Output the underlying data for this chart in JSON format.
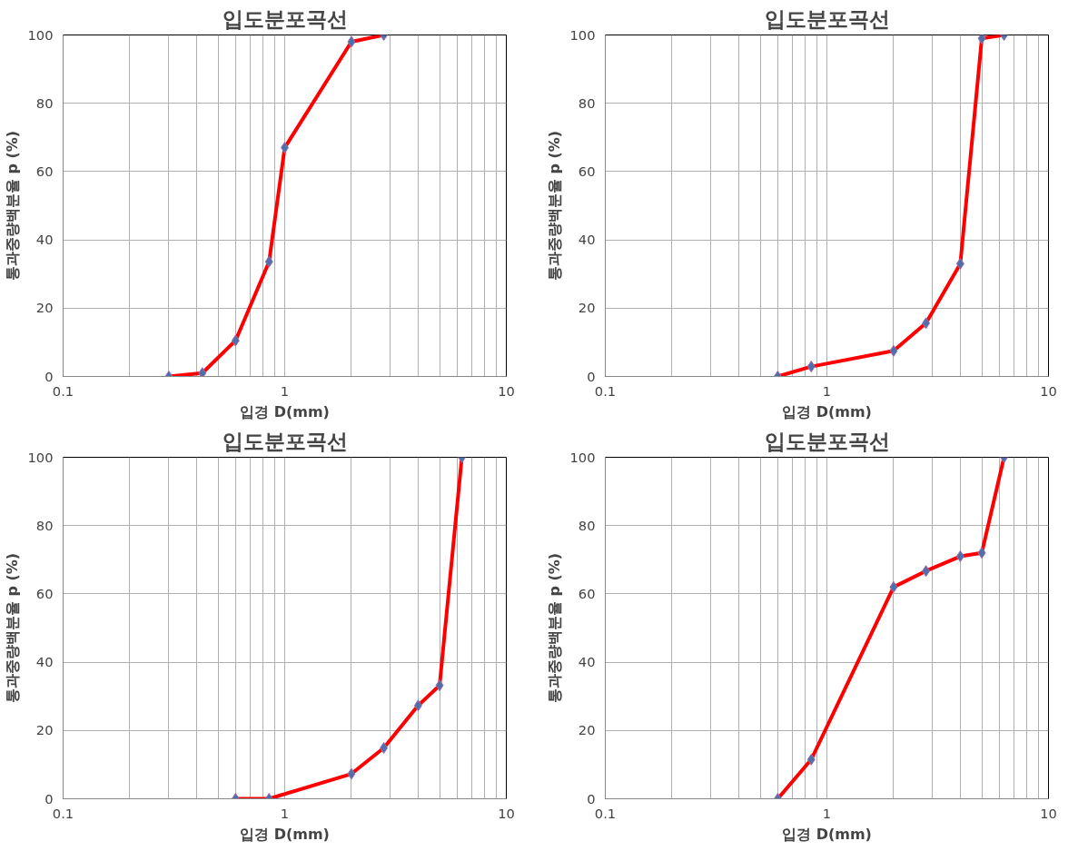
{
  "chart_data": [
    {
      "type": "line",
      "title": "입도분포곡선",
      "xlabel": "입경 D(mm)",
      "ylabel": "통과중량백분율 p (%)",
      "log": "x",
      "grid": true,
      "marker": "diamond",
      "line_style": "solid",
      "xlim": [
        0.1,
        10
      ],
      "ylim": [
        0,
        100
      ],
      "xticks": [
        0.1,
        {
          "value": 0.2,
          "label": null
        },
        {
          "value": 0.3,
          "label": null
        },
        {
          "value": 0.4,
          "label": null
        },
        {
          "value": 0.5,
          "label": null
        },
        {
          "value": 0.6,
          "label": null
        },
        {
          "value": 0.7,
          "label": null
        },
        {
          "value": 0.8,
          "label": null
        },
        {
          "value": 0.9,
          "label": null
        },
        1,
        {
          "value": 2,
          "label": null
        },
        {
          "value": 3,
          "label": null
        },
        {
          "value": 4,
          "label": null
        },
        {
          "value": 5,
          "label": null
        },
        {
          "value": 6,
          "label": null
        },
        {
          "value": 7,
          "label": null
        },
        {
          "value": 8,
          "label": null
        },
        {
          "value": 9,
          "label": null
        },
        10
      ],
      "yticks": [
        0,
        20,
        40,
        60,
        80,
        100
      ],
      "series": [
        {
          "color": "#ff0000",
          "x": [
            0.3,
            0.425,
            0.6,
            0.85,
            1,
            2,
            2.8
          ],
          "values": [
            0,
            1,
            10.5,
            33.6,
            67,
            98,
            100
          ]
        }
      ]
    },
    {
      "type": "line",
      "title": "입도분포곡선",
      "xlabel": "입경 D(mm)",
      "ylabel": "통과중량백분율 p (%)",
      "log": "x",
      "grid": true,
      "marker": "diamond",
      "line_style": "solid",
      "xlim": [
        0.1,
        10
      ],
      "ylim": [
        0,
        100
      ],
      "xticks": [
        0.1,
        {
          "value": 0.2,
          "label": null
        },
        {
          "value": 0.3,
          "label": null
        },
        {
          "value": 0.4,
          "label": null
        },
        {
          "value": 0.5,
          "label": null
        },
        {
          "value": 0.6,
          "label": null
        },
        {
          "value": 0.7,
          "label": null
        },
        {
          "value": 0.8,
          "label": null
        },
        {
          "value": 0.9,
          "label": null
        },
        1,
        {
          "value": 2,
          "label": null
        },
        {
          "value": 3,
          "label": null
        },
        {
          "value": 4,
          "label": null
        },
        {
          "value": 5,
          "label": null
        },
        {
          "value": 6,
          "label": null
        },
        {
          "value": 7,
          "label": null
        },
        {
          "value": 8,
          "label": null
        },
        {
          "value": 9,
          "label": null
        },
        10
      ],
      "yticks": [
        0,
        20,
        40,
        60,
        80,
        100
      ],
      "series": [
        {
          "color": "#ff0000",
          "x": [
            0.6,
            0.85,
            2,
            2.8,
            4,
            5,
            6.3
          ],
          "values": [
            0,
            2.9,
            7.5,
            15.6,
            33,
            99,
            100
          ]
        }
      ]
    },
    {
      "type": "line",
      "title": "입도분포곡선",
      "xlabel": "입경 D(mm)",
      "ylabel": "통과중량백분율 p (%)",
      "log": "x",
      "grid": true,
      "marker": "diamond",
      "line_style": "solid",
      "xlim": [
        0.1,
        10
      ],
      "ylim": [
        0,
        100
      ],
      "xticks": [
        0.1,
        {
          "value": 0.2,
          "label": null
        },
        {
          "value": 0.3,
          "label": null
        },
        {
          "value": 0.4,
          "label": null
        },
        {
          "value": 0.5,
          "label": null
        },
        {
          "value": 0.6,
          "label": null
        },
        {
          "value": 0.7,
          "label": null
        },
        {
          "value": 0.8,
          "label": null
        },
        {
          "value": 0.9,
          "label": null
        },
        1,
        {
          "value": 2,
          "label": null
        },
        {
          "value": 3,
          "label": null
        },
        {
          "value": 4,
          "label": null
        },
        {
          "value": 5,
          "label": null
        },
        {
          "value": 6,
          "label": null
        },
        {
          "value": 7,
          "label": null
        },
        {
          "value": 8,
          "label": null
        },
        {
          "value": 9,
          "label": null
        },
        10
      ],
      "yticks": [
        0,
        20,
        40,
        60,
        80,
        100
      ],
      "series": [
        {
          "color": "#ff0000",
          "x": [
            0.6,
            0.85,
            2,
            2.8,
            4,
            5,
            6.3
          ],
          "values": [
            0,
            0,
            7.3,
            14.9,
            27.3,
            33.2,
            100
          ]
        }
      ]
    },
    {
      "type": "line",
      "title": "입도분포곡선",
      "xlabel": "입경 D(mm)",
      "ylabel": "통과중량백분율 p (%)",
      "log": "x",
      "grid": true,
      "marker": "diamond",
      "line_style": "solid",
      "xlim": [
        0.1,
        10
      ],
      "ylim": [
        0,
        100
      ],
      "xticks": [
        0.1,
        {
          "value": 0.2,
          "label": null
        },
        {
          "value": 0.3,
          "label": null
        },
        {
          "value": 0.4,
          "label": null
        },
        {
          "value": 0.5,
          "label": null
        },
        {
          "value": 0.6,
          "label": null
        },
        {
          "value": 0.7,
          "label": null
        },
        {
          "value": 0.8,
          "label": null
        },
        {
          "value": 0.9,
          "label": null
        },
        1,
        {
          "value": 2,
          "label": null
        },
        {
          "value": 3,
          "label": null
        },
        {
          "value": 4,
          "label": null
        },
        {
          "value": 5,
          "label": null
        },
        {
          "value": 6,
          "label": null
        },
        {
          "value": 7,
          "label": null
        },
        {
          "value": 8,
          "label": null
        },
        {
          "value": 9,
          "label": null
        },
        10
      ],
      "yticks": [
        0,
        20,
        40,
        60,
        80,
        100
      ],
      "series": [
        {
          "color": "#ff0000",
          "x": [
            0.6,
            0.85,
            2,
            2.8,
            4,
            5,
            6.3
          ],
          "values": [
            0,
            11.5,
            62,
            66.7,
            71,
            72,
            100
          ]
        }
      ]
    }
  ]
}
